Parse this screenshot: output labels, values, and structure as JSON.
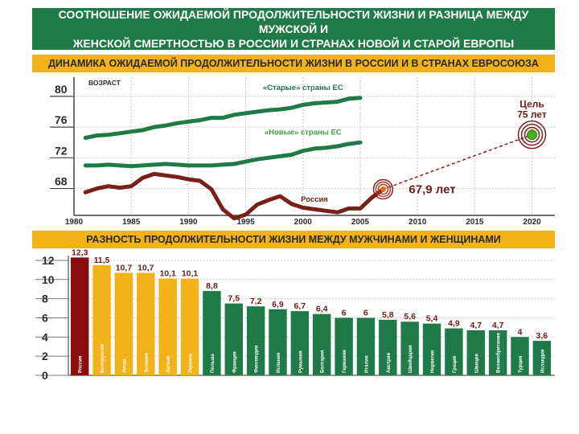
{
  "header": {
    "title_line1": "СООТНОШЕНИЕ ОЖИДАЕМОЙ ПРОДОЛЖИТЕЛЬНОСТИ ЖИЗНИ И РАЗНИЦА МЕЖДУ МУЖСКОЙ И",
    "title_line2": "ЖЕНСКОЙ СМЕРТНОСТЬЮ В РОССИИ И СТРАНАХ НОВОЙ И СТАРОЙ ЕВРОПЫ"
  },
  "colors": {
    "header_bg": "#1e7b45",
    "band_bg": "#f2b21a",
    "green_series": "#1e7b45",
    "russia_series": "#7a1f1a",
    "bar_red": "#8b0e0e",
    "bar_yellow": "#f2b21a",
    "bar_green": "#1e7b45",
    "target_green": "#4caf1f"
  },
  "chart_data": [
    {
      "type": "line",
      "title": "ДИНАМИКА ОЖИДАЕМОЙ ПРОДОЛЖИТЕЛЬНОСТИ ЖИЗНИ В РОССИИ И В СТРАНАХ ЕВРОСОЮЗА",
      "ylabel": "ВОЗРАСТ",
      "xlabel": "",
      "xlim": [
        1980,
        2022
      ],
      "ylim": [
        64.5,
        82.5
      ],
      "xticks": [
        1980,
        1985,
        1990,
        1995,
        2000,
        2005,
        2010,
        2015,
        2020
      ],
      "yticks": [
        68,
        72,
        76,
        80
      ],
      "grid": true,
      "series": [
        {
          "name": "«Старые» страны ЕС",
          "color": "#1e7b45",
          "x": [
            1981,
            1982,
            1983,
            1984,
            1985,
            1986,
            1987,
            1988,
            1989,
            1990,
            1991,
            1992,
            1993,
            1994,
            1995,
            1996,
            1997,
            1998,
            1999,
            2000,
            2001,
            2002,
            2003,
            2004,
            2005
          ],
          "y": [
            74.6,
            74.9,
            75.0,
            75.2,
            75.4,
            75.6,
            76.0,
            76.2,
            76.5,
            76.7,
            76.9,
            77.2,
            77.2,
            77.6,
            77.8,
            78.0,
            78.2,
            78.3,
            78.5,
            78.9,
            79.1,
            79.2,
            79.3,
            79.7,
            79.8
          ]
        },
        {
          "name": "«Новые» страны ЕС",
          "color": "#1e7b45",
          "x": [
            1981,
            1982,
            1983,
            1984,
            1985,
            1986,
            1987,
            1988,
            1989,
            1990,
            1991,
            1992,
            1993,
            1994,
            1995,
            1996,
            1997,
            1998,
            1999,
            2000,
            2001,
            2002,
            2003,
            2004,
            2005
          ],
          "y": [
            71.0,
            71.0,
            71.1,
            71.0,
            70.9,
            71.0,
            71.1,
            71.2,
            71.1,
            71.0,
            71.0,
            71.0,
            71.1,
            71.2,
            71.5,
            71.8,
            72.0,
            72.2,
            72.4,
            72.9,
            73.2,
            73.3,
            73.5,
            73.8,
            74.0
          ]
        },
        {
          "name": "Россия",
          "color": "#7a1f1a",
          "x": [
            1981,
            1982,
            1983,
            1984,
            1985,
            1986,
            1987,
            1988,
            1989,
            1990,
            1991,
            1992,
            1993,
            1994,
            1995,
            1996,
            1997,
            1998,
            1999,
            2000,
            2001,
            2002,
            2003,
            2004,
            2005,
            2006,
            2007
          ],
          "y": [
            67.5,
            68.0,
            68.3,
            68.1,
            68.3,
            69.4,
            69.9,
            69.7,
            69.5,
            69.2,
            69.0,
            67.9,
            65.3,
            64.1,
            64.6,
            65.9,
            66.5,
            67.0,
            66.0,
            65.5,
            65.3,
            65.1,
            64.9,
            65.4,
            65.4,
            66.8,
            67.9
          ]
        }
      ],
      "annotations": {
        "current_label": "67,9 лет",
        "current_point": {
          "x": 2007,
          "y": 67.9
        },
        "target_label_line1": "Цель",
        "target_label_line2": "75 лет",
        "target_point": {
          "x": 2020,
          "y": 75
        }
      }
    },
    {
      "type": "bar",
      "title": "РАЗНОСТЬ ПРОДОЛЖИТЕЛЬНОСТИ ЖИЗНИ МЕЖДУ МУЖЧИНАМИ И ЖЕНЩИНАМИ",
      "xlabel": "",
      "ylabel": "",
      "ylim": [
        0,
        12.5
      ],
      "yticks": [
        0,
        2,
        4,
        6,
        8,
        10,
        12
      ],
      "grid": true,
      "categories": [
        "Россия",
        "Белоруссия",
        "Литва",
        "Эстония",
        "Латвия",
        "Украина",
        "Польша",
        "Франция",
        "Финляндия",
        "Испания",
        "Румыния",
        "Болгария",
        "Германия",
        "Италия",
        "Австрия",
        "Швейцария",
        "Норвегия",
        "Греция",
        "Швеция",
        "Великобритания",
        "Турция",
        "Исландия"
      ],
      "value_labels": [
        "12,3",
        "11,5",
        "10,7",
        "10,7",
        "10,1",
        "10,1",
        "8,8",
        "7,5",
        "7,2",
        "6,9",
        "6,7",
        "6,4",
        "6",
        "6",
        "5,8",
        "5,6",
        "5,4",
        "4,9",
        "4,7",
        "4,7",
        "4",
        "3,6"
      ],
      "values": [
        12.3,
        11.5,
        10.7,
        10.7,
        10.1,
        10.1,
        8.8,
        7.5,
        7.2,
        6.9,
        6.7,
        6.4,
        6.0,
        6.0,
        5.8,
        5.6,
        5.4,
        4.9,
        4.7,
        4.7,
        4.0,
        3.6
      ],
      "bar_groups": [
        "red",
        "yellow",
        "yellow",
        "yellow",
        "yellow",
        "yellow",
        "green",
        "green",
        "green",
        "green",
        "green",
        "green",
        "green",
        "green",
        "green",
        "green",
        "green",
        "green",
        "green",
        "green",
        "green",
        "green"
      ]
    }
  ]
}
